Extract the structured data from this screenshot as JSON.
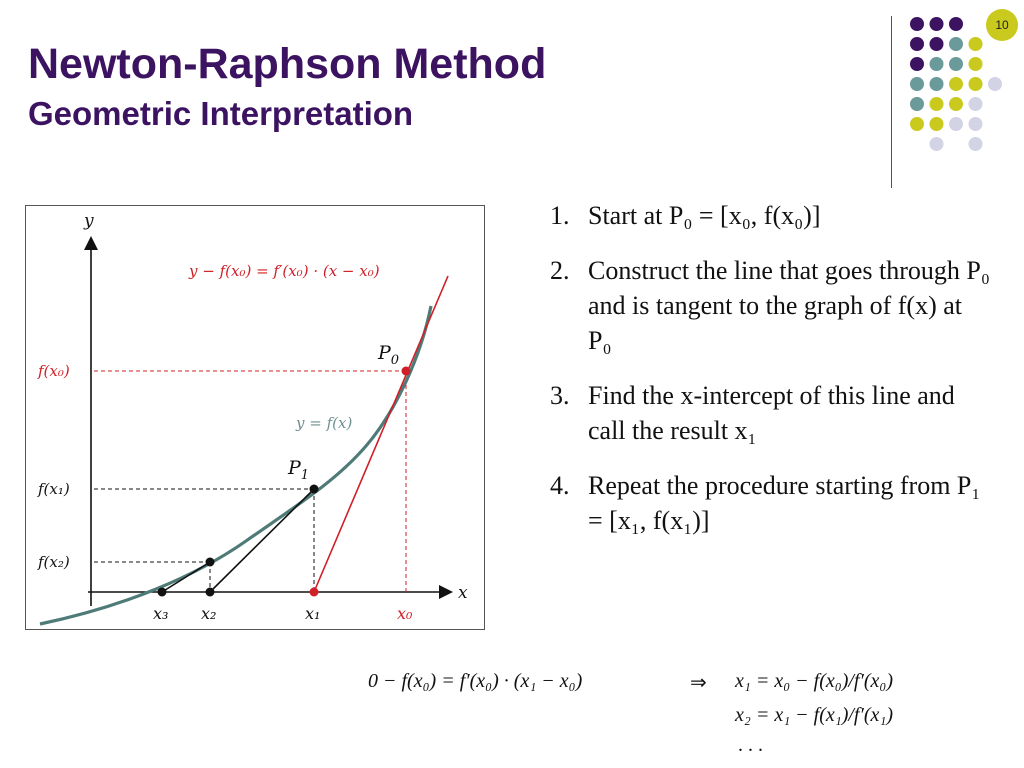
{
  "slide": {
    "title": "Newton-Raphson Method",
    "subtitle": "Geometric Interpretation",
    "page_number": "10"
  },
  "colors": {
    "title": "#3c1361",
    "curve": "#4e7a78",
    "tangent": "#d01f26",
    "dot_purple": "#3c1361",
    "dot_teal": "#6a9a9a",
    "dot_lime": "#c9c91e",
    "dot_lavender": "#d3d3e6"
  },
  "decoration": {
    "dot_grid": [
      [
        "purple",
        "purple",
        "purple",
        null,
        null
      ],
      [
        "purple",
        "purple",
        "teal",
        "lime",
        null
      ],
      [
        "purple",
        "teal",
        "teal",
        "lime",
        null
      ],
      [
        "teal",
        "teal",
        "lime",
        "lime",
        "lavender"
      ],
      [
        "teal",
        "lime",
        "lime",
        "lavender",
        null
      ],
      [
        "lime",
        "lime",
        "lavender",
        "lavender",
        null
      ],
      [
        null,
        "lavender",
        null,
        "lavender",
        null
      ]
    ]
  },
  "diagram": {
    "axis_x_label": "x",
    "axis_y_label": "y",
    "tangent_label": "y − f(x₀) = f′(x₀) · (x − x₀)",
    "curve_label": "y = f(x)",
    "points": [
      {
        "id": "P0",
        "label": "P",
        "sub": "0",
        "y_label": "f(x₀)",
        "x_label": "x₀"
      },
      {
        "id": "P1",
        "label": "P",
        "sub": "1",
        "y_label": "f(x₁)",
        "x_label": "x₁"
      },
      {
        "id": "P2",
        "label": "",
        "sub": "",
        "y_label": "f(x₂)",
        "x_label": "x₂"
      }
    ],
    "x3_label": "x₃"
  },
  "steps": [
    {
      "num": "1.",
      "text": "Start at P₀ = [x₀, f(x₀)]"
    },
    {
      "num": "2.",
      "text": "Construct the line that goes through P₀ and is tangent to the graph of f(x) at P₀"
    },
    {
      "num": "3.",
      "text": "Find the x-intercept of this line and call the result x₁"
    },
    {
      "num": "4.",
      "text": "Repeat the procedure starting from P₁ = [x₁, f(x₁)]"
    }
  ],
  "equations": {
    "line1_left": "0 − f(x₀) = f′(x₀) · (x₁ − x₀)",
    "implies": "⇒",
    "line1_right": "x₁ = x₀ − f(x₀)/f′(x₀)",
    "line2": "x₂ = x₁ − f(x₁)/f′(x₁)",
    "line3": ". . ."
  }
}
